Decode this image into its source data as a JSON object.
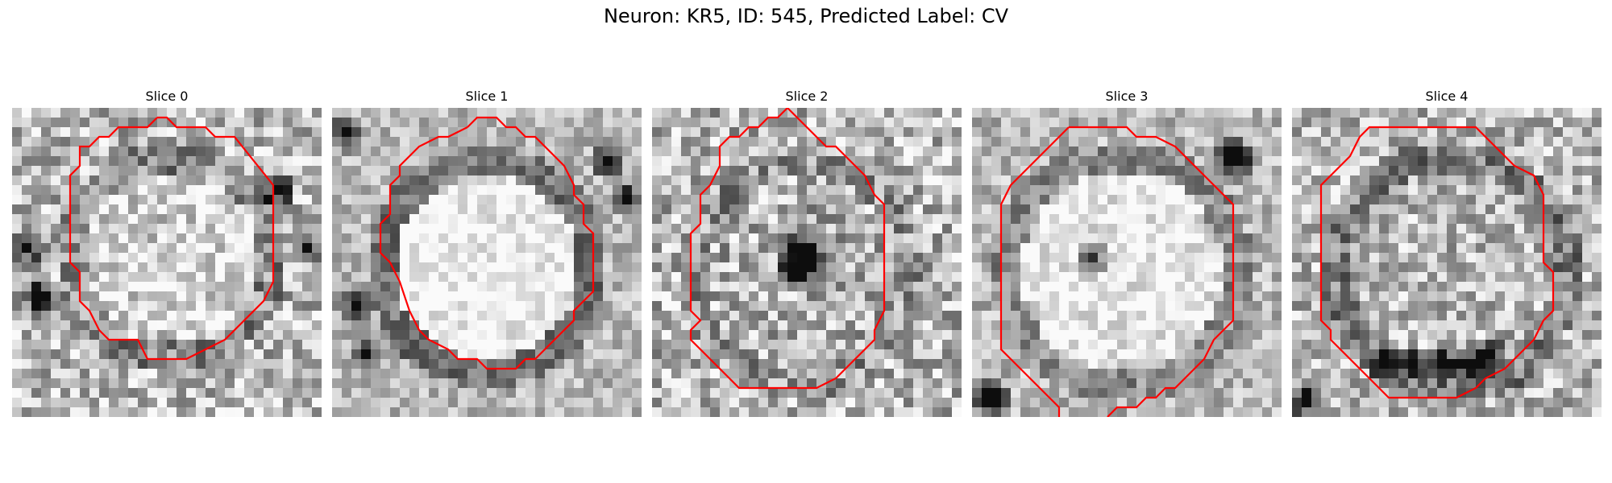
{
  "figure": {
    "title": "Neuron: KR5, ID: 545, Predicted Label: CV"
  },
  "colors": {
    "contour": "#ff0000",
    "background": "#ffffff"
  },
  "panels": [
    {
      "title": "Slice 0"
    },
    {
      "title": "Slice 1"
    },
    {
      "title": "Slice 2"
    },
    {
      "title": "Slice 3"
    },
    {
      "title": "Slice 4"
    }
  ]
}
